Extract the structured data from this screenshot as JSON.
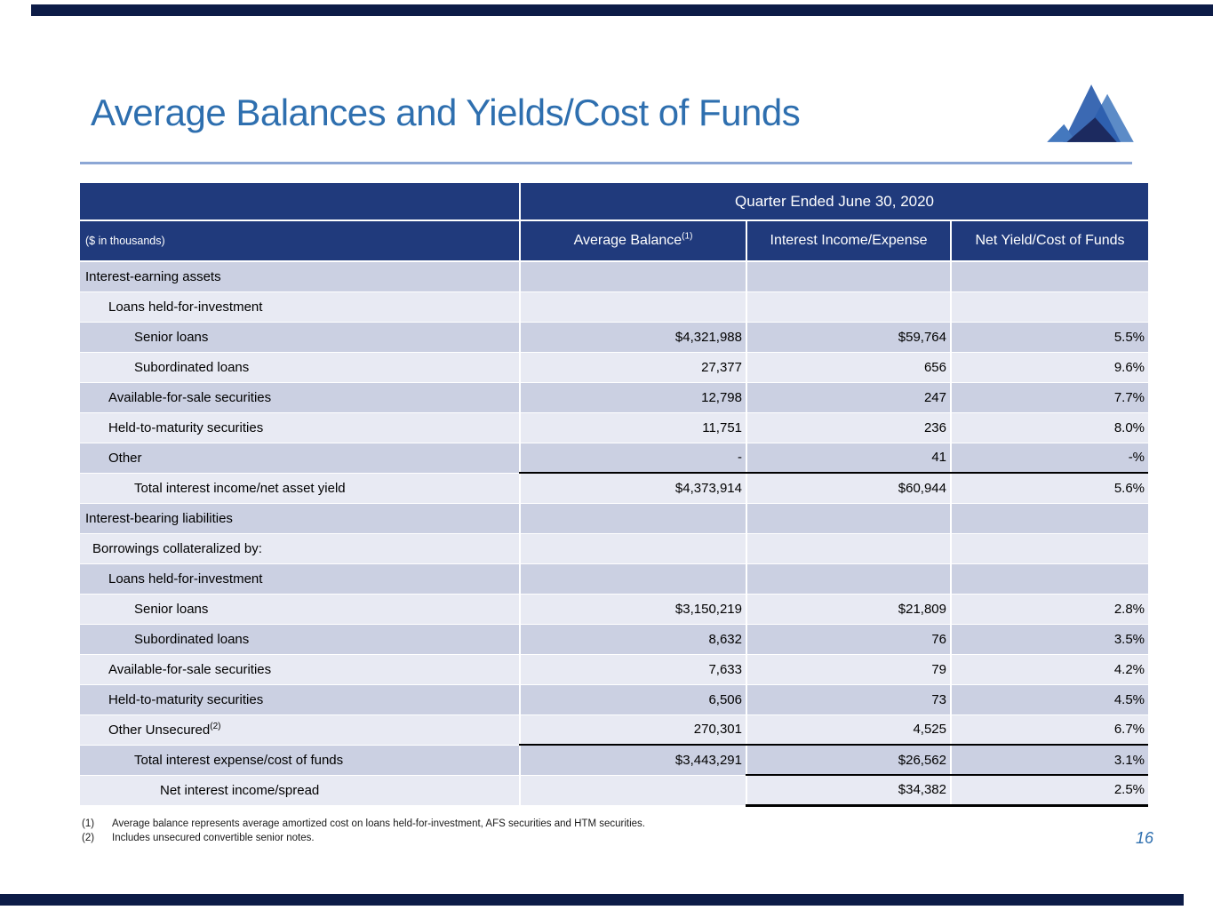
{
  "slide": {
    "title": "Average Balances and Yields/Cost of Funds",
    "page_number": "16"
  },
  "colors": {
    "title_blue": "#2e6faf",
    "title_rule_blue": "#8ca7d5",
    "header_navy": "#203a7c",
    "row_shade_dark": "#cbd0e2",
    "row_shade_light": "#e8eaf3",
    "accent_bar_navy": "#0d1c47",
    "total_rule_black": "#000000",
    "logo_main_blue": "#2a5cac",
    "logo_light_blue": "#5c8bc7",
    "logo_mid_blue": "#4478be",
    "logo_dark_navy": "#1c2a5f"
  },
  "table": {
    "span_header": "Quarter Ended June 30, 2020",
    "corner_label": "($ in thousands)",
    "columns": [
      "Average Balance",
      "Interest Income/Expense",
      "Net Yield/Cost of Funds"
    ],
    "column_sups": [
      "(1)",
      "",
      ""
    ],
    "rows": [
      {
        "label": "Interest-earning assets",
        "sup": "",
        "indent": 0,
        "values": [
          "",
          "",
          ""
        ],
        "bottom_rule": ""
      },
      {
        "label": "Loans held-for-investment",
        "sup": "",
        "indent": 2,
        "values": [
          "",
          "",
          ""
        ],
        "bottom_rule": ""
      },
      {
        "label": "Senior loans",
        "sup": "",
        "indent": 3,
        "values": [
          "$4,321,988",
          "$59,764",
          "5.5%"
        ],
        "bottom_rule": ""
      },
      {
        "label": "Subordinated loans",
        "sup": "",
        "indent": 3,
        "values": [
          "27,377",
          "656",
          "9.6%"
        ],
        "bottom_rule": ""
      },
      {
        "label": "Available-for-sale securities",
        "sup": "",
        "indent": 2,
        "values": [
          "12,798",
          "247",
          "7.7%"
        ],
        "bottom_rule": ""
      },
      {
        "label": "Held-to-maturity securities",
        "sup": "",
        "indent": 2,
        "values": [
          "11,751",
          "236",
          "8.0%"
        ],
        "bottom_rule": ""
      },
      {
        "label": "Other",
        "sup": "",
        "indent": 2,
        "values": [
          "-",
          "41",
          "-%"
        ],
        "bottom_rule": "data-cols"
      },
      {
        "label": "Total interest income/net asset yield",
        "sup": "",
        "indent": 3,
        "values": [
          "$4,373,914",
          "$60,944",
          "5.6%"
        ],
        "bottom_rule": ""
      },
      {
        "label": "Interest-bearing liabilities",
        "sup": "",
        "indent": 0,
        "values": [
          "",
          "",
          ""
        ],
        "bottom_rule": ""
      },
      {
        "label": "Borrowings collateralized by:",
        "sup": "",
        "indent": 1,
        "values": [
          "",
          "",
          ""
        ],
        "bottom_rule": ""
      },
      {
        "label": "Loans held-for-investment",
        "sup": "",
        "indent": 2,
        "values": [
          "",
          "",
          ""
        ],
        "bottom_rule": ""
      },
      {
        "label": "Senior loans",
        "sup": "",
        "indent": 3,
        "values": [
          "$3,150,219",
          "$21,809",
          "2.8%"
        ],
        "bottom_rule": ""
      },
      {
        "label": "Subordinated loans",
        "sup": "",
        "indent": 3,
        "values": [
          "8,632",
          "76",
          "3.5%"
        ],
        "bottom_rule": ""
      },
      {
        "label": "Available-for-sale securities",
        "sup": "",
        "indent": 2,
        "values": [
          "7,633",
          "79",
          "4.2%"
        ],
        "bottom_rule": ""
      },
      {
        "label": "Held-to-maturity securities",
        "sup": "",
        "indent": 2,
        "values": [
          "6,506",
          "73",
          "4.5%"
        ],
        "bottom_rule": ""
      },
      {
        "label": "Other Unsecured",
        "sup": "(2)",
        "indent": 2,
        "values": [
          "270,301",
          "4,525",
          "6.7%"
        ],
        "bottom_rule": "data-cols"
      },
      {
        "label": "Total interest expense/cost of funds",
        "sup": "",
        "indent": 3,
        "values": [
          "$3,443,291",
          "$26,562",
          "3.1%"
        ],
        "bottom_rule": "last-two"
      },
      {
        "label": "Net interest income/spread",
        "sup": "",
        "indent": 4,
        "values": [
          "",
          "$34,382",
          "2.5%"
        ],
        "bottom_rule": "last-two-thick"
      }
    ]
  },
  "footnotes": [
    {
      "marker": "(1)",
      "text": "Average balance represents average amortized cost on loans held-for-investment, AFS securities and HTM securities."
    },
    {
      "marker": "(2)",
      "text": "Includes unsecured convertible senior notes."
    }
  ]
}
